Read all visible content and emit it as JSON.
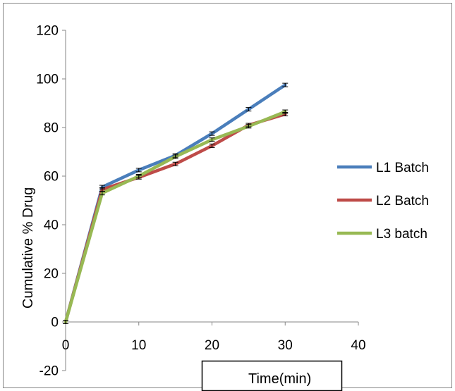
{
  "chart_data": {
    "type": "line",
    "xlabel": "Time(min)",
    "ylabel": "Cumulative % Drug",
    "xlim": [
      0,
      40
    ],
    "ylim": [
      -20,
      120
    ],
    "xticks": [
      0,
      10,
      20,
      30,
      40
    ],
    "yticks": [
      -20,
      0,
      20,
      40,
      60,
      80,
      100,
      120
    ],
    "x": [
      0,
      5,
      10,
      15,
      20,
      25,
      30
    ],
    "error_bars": true,
    "grid": false,
    "legend_position": "right",
    "series": [
      {
        "name": "L1 Batch",
        "color": "#4a7ebb",
        "values": [
          0,
          55.5,
          62.5,
          68.5,
          77.5,
          87.5,
          97.5
        ]
      },
      {
        "name": "L2 Batch",
        "color": "#be4b48",
        "values": [
          0,
          54.5,
          59.5,
          65.0,
          72.5,
          81.0,
          85.5
        ]
      },
      {
        "name": "L3 batch",
        "color": "#98b954",
        "values": [
          0,
          53.0,
          60.0,
          68.0,
          75.0,
          80.5,
          86.5
        ]
      }
    ]
  }
}
